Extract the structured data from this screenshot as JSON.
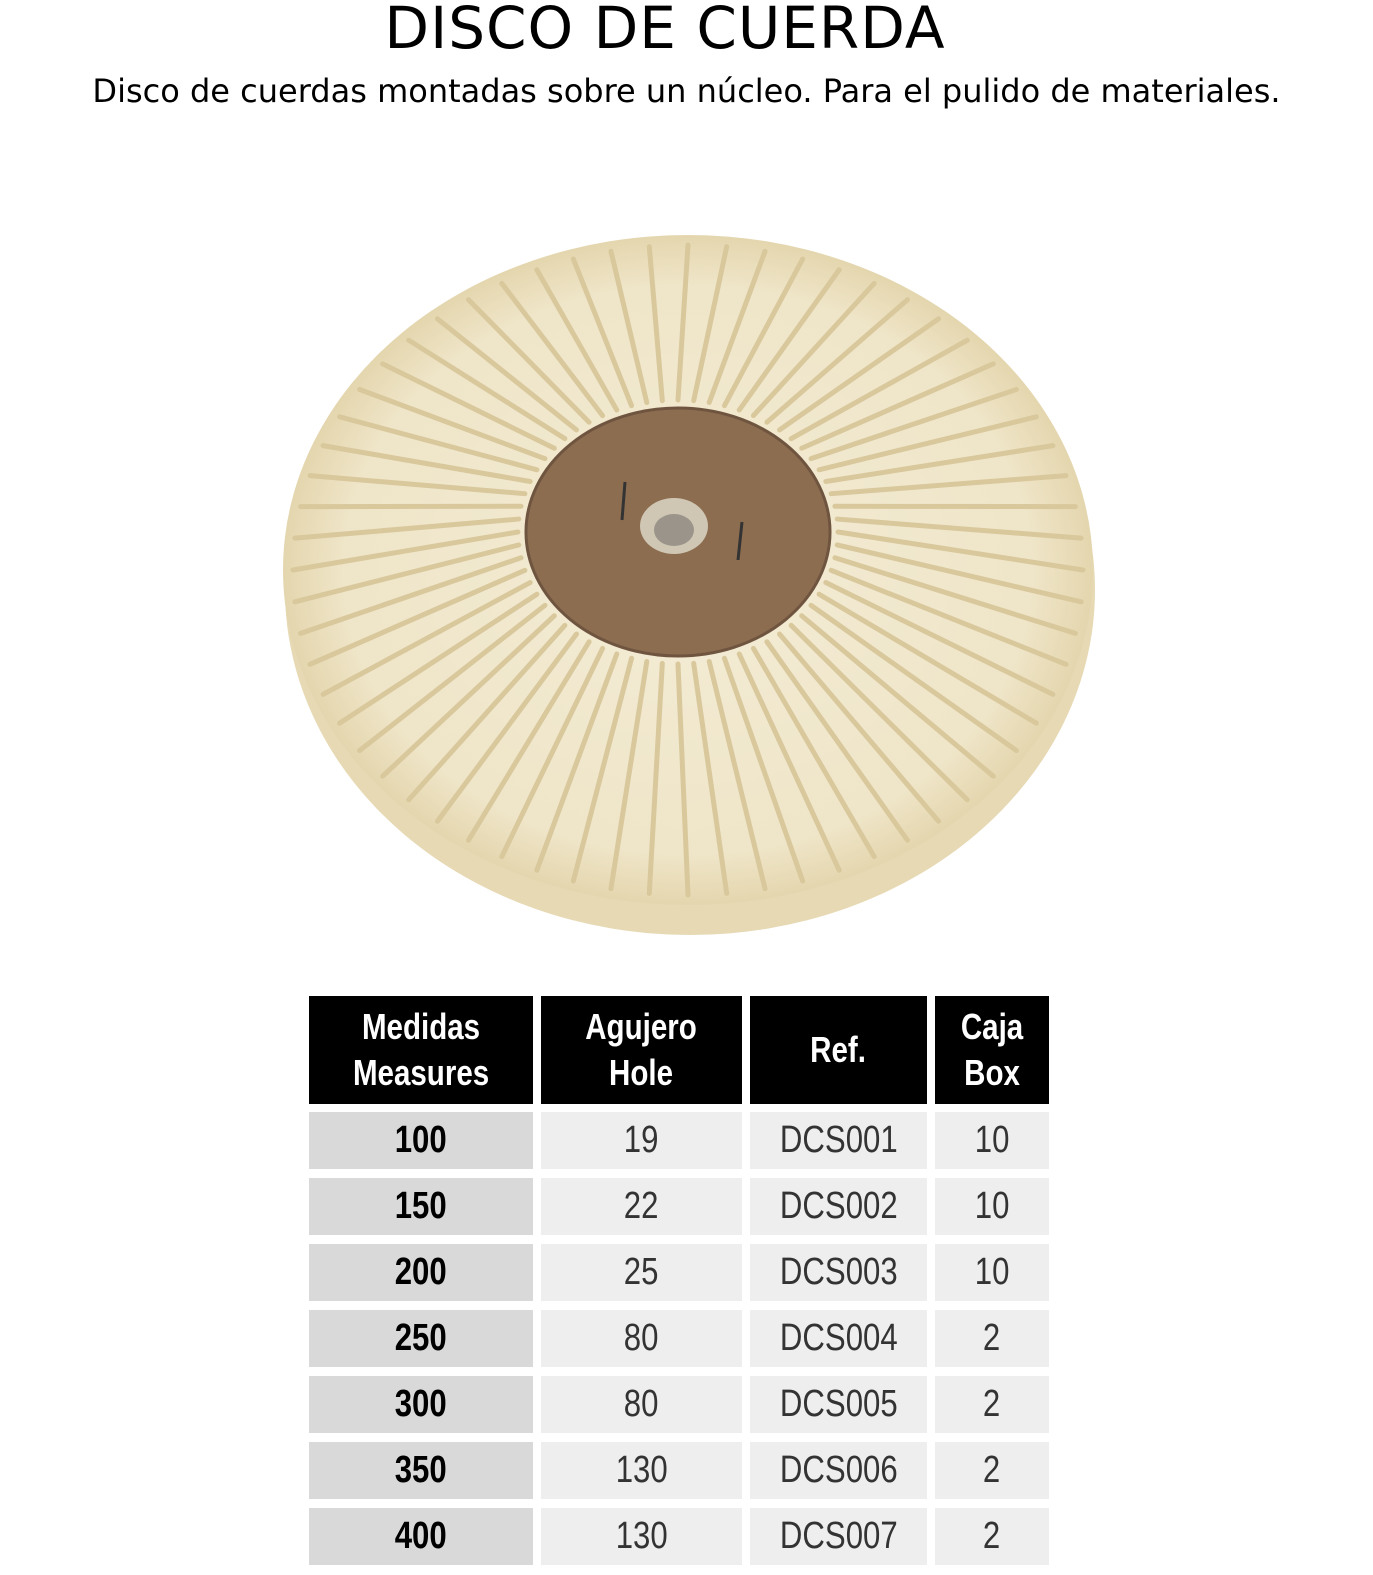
{
  "title": "DISCO DE CUERDA",
  "subtitle": "Disco de cuerdas montadas sobre un núcleo. Para el pulido de materiales.",
  "product_image": "cotton rope polishing disc with brown cardboard core",
  "table": {
    "headers": [
      [
        "Medidas",
        "Measures"
      ],
      [
        "Agujero",
        "Hole"
      ],
      [
        "Ref."
      ],
      [
        "Caja",
        "Box"
      ]
    ],
    "rows": [
      [
        "100",
        "19",
        "DCS001",
        "10"
      ],
      [
        "150",
        "22",
        "DCS002",
        "10"
      ],
      [
        "200",
        "25",
        "DCS003",
        "10"
      ],
      [
        "250",
        "80",
        "DCS004",
        "2"
      ],
      [
        "300",
        "80",
        "DCS005",
        "2"
      ],
      [
        "350",
        "130",
        "DCS006",
        "2"
      ],
      [
        "400",
        "130",
        "DCS007",
        "2"
      ]
    ]
  }
}
